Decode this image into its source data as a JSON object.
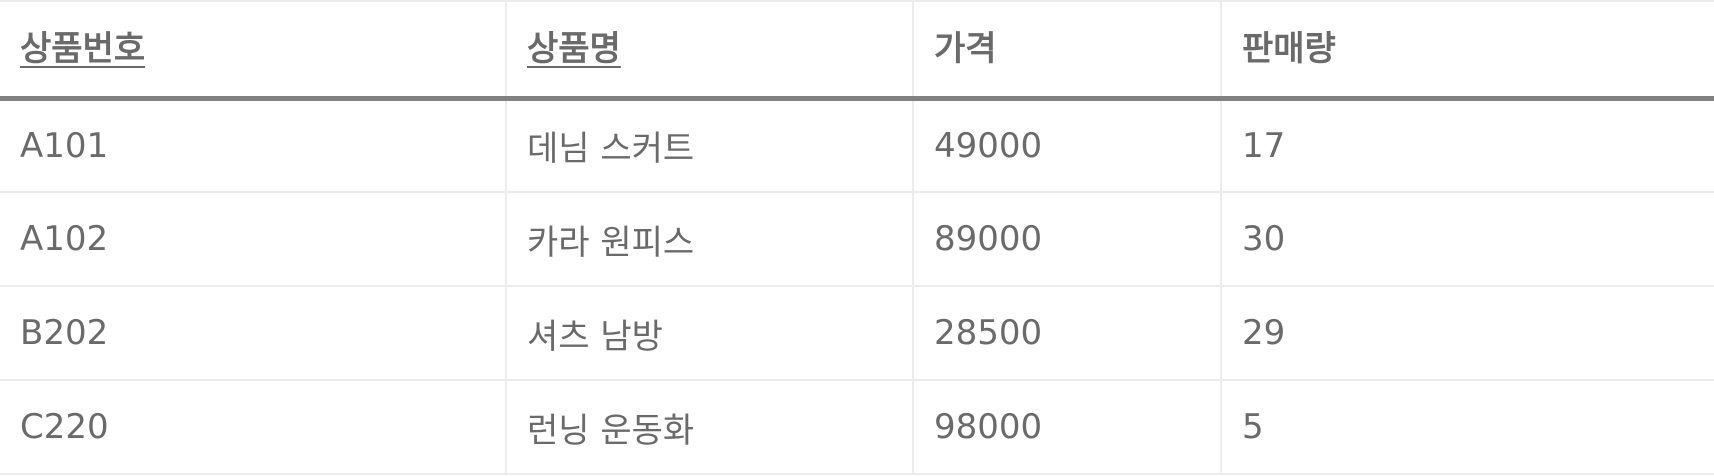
{
  "table": {
    "columns": [
      {
        "label": "상품번호",
        "key": true
      },
      {
        "label": "상품명",
        "key": true
      },
      {
        "label": "가격",
        "key": false
      },
      {
        "label": "판매량",
        "key": false
      }
    ],
    "rows": [
      [
        "A101",
        "데님 스커트",
        "49000",
        "17"
      ],
      [
        "A102",
        "카라 원피스",
        "89000",
        "30"
      ],
      [
        "B202",
        "셔츠 남방",
        "28500",
        "29"
      ],
      [
        "C220",
        "런닝 운동화",
        "98000",
        "5"
      ]
    ]
  }
}
